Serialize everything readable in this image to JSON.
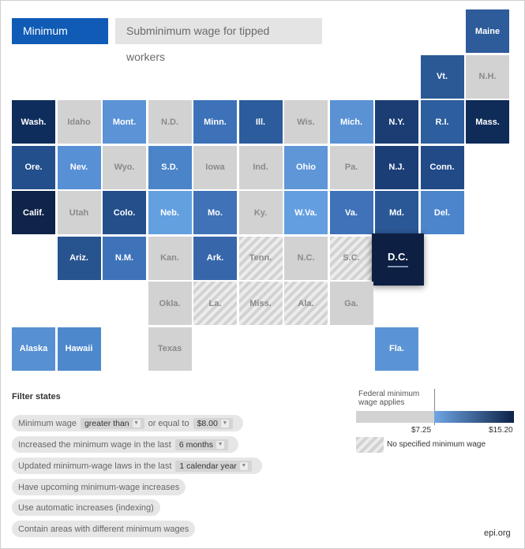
{
  "tabs": {
    "active": "Minimum wage",
    "inactive": "Subminimum wage for tipped workers"
  },
  "states": [
    {
      "abbr": "Maine",
      "style": "color",
      "color": "#2e5b9a"
    },
    {
      "abbr": "Vt.",
      "style": "color",
      "color": "#2a5996"
    },
    {
      "abbr": "N.H.",
      "style": "grey"
    },
    {
      "abbr": "Wash.",
      "style": "color",
      "color": "#0f2d5c"
    },
    {
      "abbr": "Idaho",
      "style": "grey"
    },
    {
      "abbr": "Mont.",
      "style": "color",
      "color": "#5b93d6"
    },
    {
      "abbr": "N.D.",
      "style": "grey"
    },
    {
      "abbr": "Minn.",
      "style": "color",
      "color": "#3d72b9"
    },
    {
      "abbr": "Ill.",
      "style": "color",
      "color": "#2c5c9c"
    },
    {
      "abbr": "Wis.",
      "style": "grey"
    },
    {
      "abbr": "Mich.",
      "style": "color",
      "color": "#5a92d4"
    },
    {
      "abbr": "N.Y.",
      "style": "color",
      "color": "#1b3d73"
    },
    {
      "abbr": "R.I.",
      "style": "color",
      "color": "#2d5e9d"
    },
    {
      "abbr": "Mass.",
      "style": "color",
      "color": "#0f2b58"
    },
    {
      "abbr": "Ore.",
      "style": "color",
      "color": "#234f8c"
    },
    {
      "abbr": "Nev.",
      "style": "color",
      "color": "#5790d5"
    },
    {
      "abbr": "Wyo.",
      "style": "grey"
    },
    {
      "abbr": "S.D.",
      "style": "color",
      "color": "#4b84c9"
    },
    {
      "abbr": "Iowa",
      "style": "grey"
    },
    {
      "abbr": "Ind.",
      "style": "grey"
    },
    {
      "abbr": "Ohio",
      "style": "color",
      "color": "#5e96d8"
    },
    {
      "abbr": "Pa.",
      "style": "grey"
    },
    {
      "abbr": "N.J.",
      "style": "color",
      "color": "#1c3e76"
    },
    {
      "abbr": "Conn.",
      "style": "color",
      "color": "#214a87"
    },
    {
      "abbr": "Calif.",
      "style": "color",
      "color": "#0e2448"
    },
    {
      "abbr": "Utah",
      "style": "grey"
    },
    {
      "abbr": "Colo.",
      "style": "color",
      "color": "#244f8b"
    },
    {
      "abbr": "Neb.",
      "style": "color",
      "color": "#62a0e0"
    },
    {
      "abbr": "Mo.",
      "style": "color",
      "color": "#3f72b7"
    },
    {
      "abbr": "Ky.",
      "style": "grey"
    },
    {
      "abbr": "W.Va.",
      "style": "color",
      "color": "#639fe0"
    },
    {
      "abbr": "Va.",
      "style": "color",
      "color": "#3f72b8"
    },
    {
      "abbr": "Md.",
      "style": "color",
      "color": "#2a5896"
    },
    {
      "abbr": "Del.",
      "style": "color",
      "color": "#4c85cb"
    },
    {
      "abbr": "Ariz.",
      "style": "color",
      "color": "#27538f"
    },
    {
      "abbr": "N.M.",
      "style": "color",
      "color": "#3f73b9"
    },
    {
      "abbr": "Kan.",
      "style": "grey"
    },
    {
      "abbr": "Ark.",
      "style": "color",
      "color": "#3767aa"
    },
    {
      "abbr": "Tenn.",
      "style": "hatch"
    },
    {
      "abbr": "N.C.",
      "style": "grey"
    },
    {
      "abbr": "S.C.",
      "style": "hatch"
    },
    {
      "abbr": "D.C.",
      "style": "color",
      "color": "#0d1f42"
    },
    {
      "abbr": "Okla.",
      "style": "grey"
    },
    {
      "abbr": "La.",
      "style": "hatch"
    },
    {
      "abbr": "Miss.",
      "style": "hatch"
    },
    {
      "abbr": "Ala.",
      "style": "hatch"
    },
    {
      "abbr": "Ga.",
      "style": "grey"
    },
    {
      "abbr": "Alaska",
      "style": "color",
      "color": "#5790d3"
    },
    {
      "abbr": "Hawaii",
      "style": "color",
      "color": "#4d88cd"
    },
    {
      "abbr": "Texas",
      "style": "grey"
    },
    {
      "abbr": "Fla.",
      "style": "color",
      "color": "#5b94d6"
    }
  ],
  "filters": {
    "title": "Filter states",
    "f1": {
      "pre": "Minimum wage",
      "sel": "greater than",
      "mid": "or equal to",
      "sel2": "$8.00"
    },
    "f2": {
      "pre": "Increased the minimum wage in the last",
      "sel": "6 months"
    },
    "f3": {
      "pre": "Updated minimum-wage laws in the last",
      "sel": "1 calendar year"
    },
    "f4": "Have upcoming minimum-wage increases",
    "f5": "Use automatic increases (indexing)",
    "f6": "Contain areas with different minimum wages"
  },
  "legend": {
    "federal": "Federal minimum wage applies",
    "min": "$7.25",
    "max": "$15.20",
    "no_min": "No specified minimum wage",
    "grey_color": "#d2d2d2",
    "grad_start": "#6fa6e4",
    "grad_end": "#0d2247"
  },
  "source": "epi.org"
}
